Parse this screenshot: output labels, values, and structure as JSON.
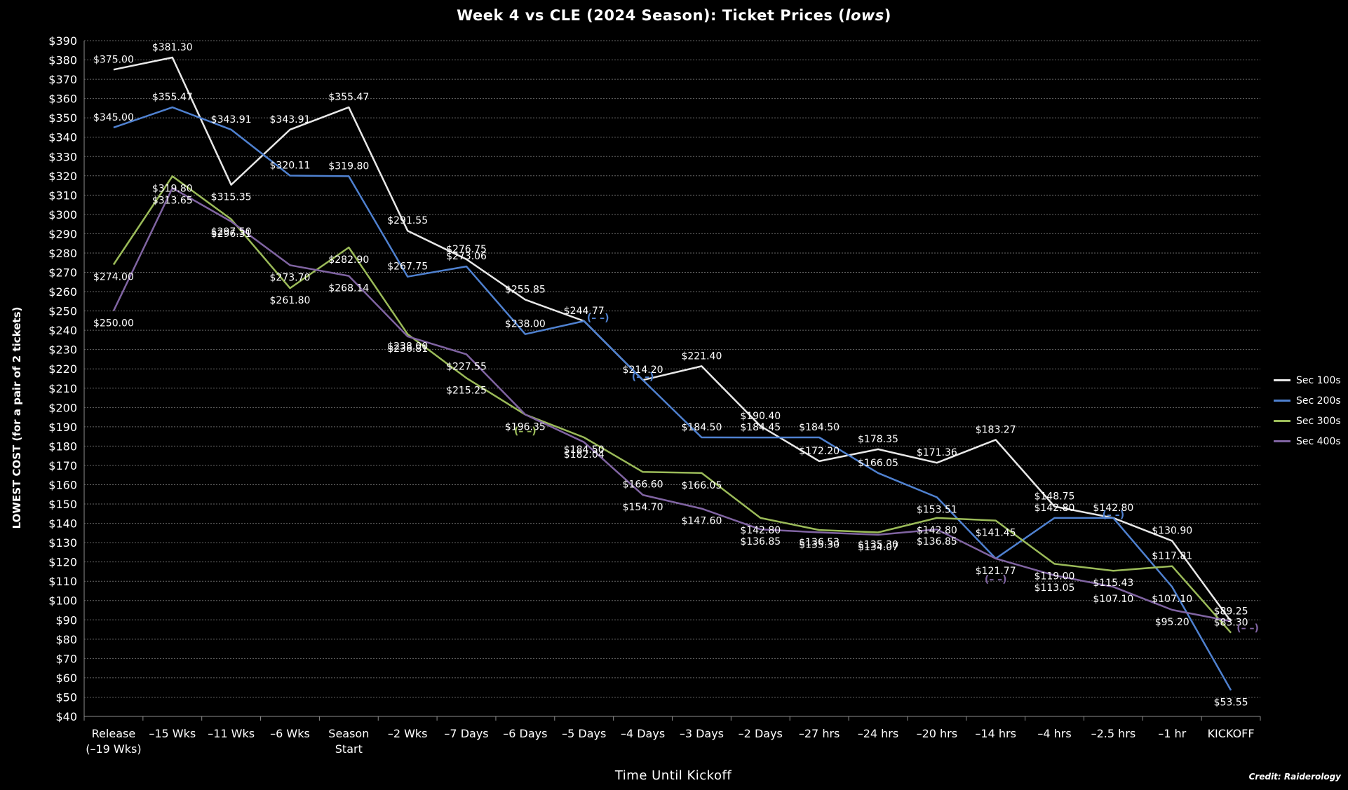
{
  "chart_data": {
    "type": "line",
    "title_main": "Week 4 vs CLE (2024 Season): Ticket Prices (",
    "title_emph": "lows",
    "title_end": ")",
    "xlabel": "Time Until Kickoff",
    "ylabel": "LOWEST COST (for a pair of 2 tickets)",
    "ylim": [
      40,
      390
    ],
    "ytick_step": 10,
    "grid": true,
    "legend_position": "right",
    "credit": "Credit: Raiderology",
    "categories": [
      [
        "Release",
        "(–19 Wks)"
      ],
      [
        "–15 Wks"
      ],
      [
        "–11 Wks"
      ],
      [
        "–6 Wks"
      ],
      [
        "Season",
        "Start"
      ],
      [
        "–2 Wks"
      ],
      [
        "–7 Days"
      ],
      [
        "–6 Days"
      ],
      [
        "–5 Days"
      ],
      [
        "–4 Days"
      ],
      [
        "–3 Days"
      ],
      [
        "–2 Days"
      ],
      [
        "–27 hrs"
      ],
      [
        "–24 hrs"
      ],
      [
        "–20 hrs"
      ],
      [
        "–14 hrs"
      ],
      [
        "–4 hrs"
      ],
      [
        "–2.5 hrs"
      ],
      [
        "–1 hr"
      ],
      [
        "KICKOFF"
      ]
    ],
    "missing_marker": "(– –)",
    "series": [
      {
        "name": "Sec 100s",
        "color": "#e8e8e8",
        "values": [
          375.0,
          381.3,
          315.35,
          343.91,
          355.47,
          291.55,
          276.75,
          255.85,
          244.77,
          214.2,
          221.4,
          190.4,
          172.2,
          178.35,
          171.36,
          183.27,
          148.75,
          142.8,
          130.9,
          89.25
        ],
        "labels": [
          "$375.00",
          "$381.30",
          "$315.35",
          "$343.91",
          "$355.47",
          "$291.55",
          "$276.75",
          "$255.85",
          "$244.77",
          "$214.20",
          "$221.40",
          "$190.40",
          "$172.20",
          "$178.35",
          "$171.36",
          "$183.27",
          "$148.75",
          "$142.80",
          "$130.90",
          "$89.25"
        ]
      },
      {
        "name": "Sec 200s",
        "color": "#4f81d0",
        "values": [
          345.0,
          355.47,
          343.91,
          320.11,
          319.8,
          267.75,
          273.06,
          238.0,
          244.77,
          214.2,
          184.5,
          184.45,
          184.5,
          166.05,
          153.51,
          121.77,
          142.8,
          142.8,
          107.1,
          53.55
        ],
        "labels": [
          "$345.00",
          "$355.47",
          "$343.91",
          "$320.11",
          "$319.80",
          "$267.75",
          "$273.06",
          "$238.00",
          "",
          "",
          "$184.50",
          "$184.45",
          "$184.50",
          "$166.05",
          "$153.51",
          "$121.77",
          "$142.80",
          "",
          "$107.10",
          "$53.55"
        ]
      },
      {
        "name": "Sec 300s",
        "color": "#9bbb59",
        "values": [
          274.0,
          319.8,
          297.5,
          261.8,
          282.9,
          238.0,
          215.25,
          196.35,
          184.5,
          166.6,
          166.05,
          142.8,
          136.53,
          135.3,
          142.8,
          141.45,
          119.0,
          115.43,
          117.81,
          83.3
        ],
        "labels": [
          "$274.00",
          "$319.80",
          "$297.50",
          "$261.80",
          "$282.90",
          "$238.00",
          "$215.25",
          "",
          "$184.50",
          "$166.60",
          "$166.05",
          "$142.80",
          "$136.53",
          "$135.30",
          "$142.80",
          "$141.45",
          "$119.00",
          "$115.43",
          "$117.81",
          "$83.30"
        ]
      },
      {
        "name": "Sec 400s",
        "color": "#8064a2",
        "values": [
          250.0,
          313.65,
          296.31,
          273.7,
          268.14,
          236.81,
          227.55,
          196.35,
          182.04,
          154.7,
          147.6,
          136.85,
          135.3,
          134.07,
          136.85,
          121.77,
          113.05,
          107.1,
          95.2,
          89.25
        ],
        "labels": [
          "$250.00",
          "$313.65",
          "$296.31",
          "$273.70",
          "$268.14",
          "$236.81",
          "$227.55",
          "$196.35",
          "$182.04",
          "$154.70",
          "$147.60",
          "$136.85",
          "$135.30",
          "$134.07",
          "$136.85",
          "",
          "$113.05",
          "$107.10",
          "$95.20",
          ""
        ]
      }
    ]
  }
}
